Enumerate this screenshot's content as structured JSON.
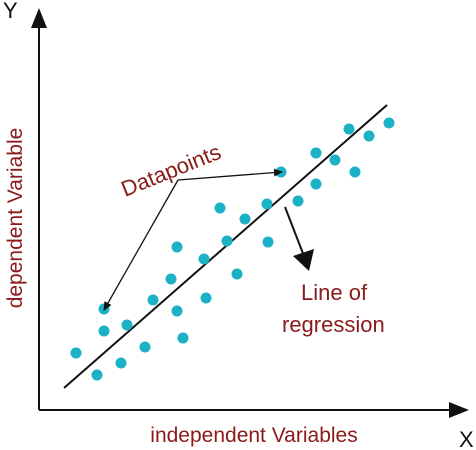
{
  "labels": {
    "y_axis_letter": "Y",
    "x_axis_letter": "X",
    "y_axis_title": "dependent Variable",
    "x_axis_title": "independent Variables",
    "datapoints_annotation": "Datapoints",
    "regression_annotation_line1": "Line of",
    "regression_annotation_line2": "regression"
  },
  "colors": {
    "point": "#1ab2c4",
    "label": "#8b1a1a",
    "line": "#111111"
  }
}
